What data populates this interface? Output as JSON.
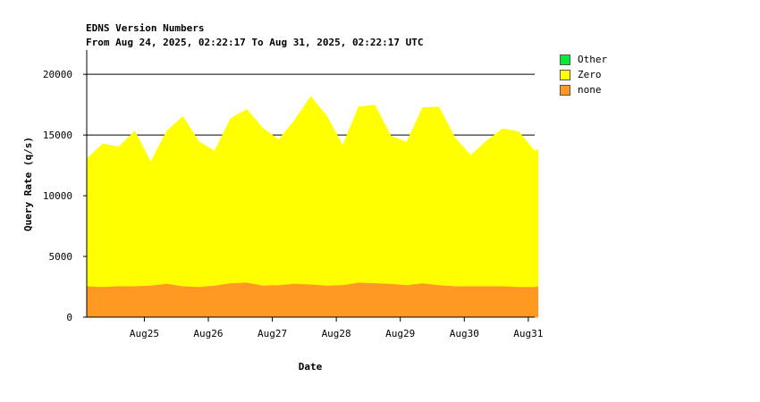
{
  "chart_data": {
    "type": "area",
    "title": "EDNS Version Numbers",
    "subtitle": "From Aug 24, 2025, 02:22:17 To Aug 31, 2025, 02:22:17 UTC",
    "xlabel": "Date",
    "ylabel": "Query Rate (q/s)",
    "ylim": [
      0,
      22000
    ],
    "y_ticks": [
      0,
      5000,
      10000,
      15000,
      20000
    ],
    "x_tick_labels": [
      "Aug25",
      "Aug26",
      "Aug27",
      "Aug28",
      "Aug29",
      "Aug30",
      "Aug31"
    ],
    "x_tick_days": [
      0.9,
      1.9,
      2.9,
      3.9,
      4.9,
      5.9,
      6.9
    ],
    "x_range_days": [
      0,
      7
    ],
    "grid": "horizontal",
    "legend_placement": "right",
    "stacked": true,
    "series": [
      {
        "name": "Other",
        "color": "#00ee33",
        "values": [
          0,
          0,
          0,
          0,
          0,
          0,
          0,
          0,
          0,
          0,
          0,
          0,
          0,
          0,
          0,
          0,
          0,
          0,
          0,
          0,
          0,
          0,
          0,
          0,
          0,
          0,
          0,
          0,
          0,
          0
        ]
      },
      {
        "name": "Zero",
        "color": "#ffff00",
        "x_days": [
          0,
          0.25,
          0.5,
          0.75,
          1,
          1.25,
          1.5,
          1.75,
          2,
          2.25,
          2.5,
          2.75,
          3,
          3.25,
          3.5,
          3.75,
          4,
          4.25,
          4.5,
          4.75,
          5,
          5.25,
          5.5,
          5.75,
          6,
          6.25,
          6.5,
          6.75,
          7,
          7.05
        ],
        "values": [
          10500,
          11800,
          11500,
          12800,
          10200,
          12600,
          14000,
          12000,
          11100,
          13600,
          14300,
          13000,
          12000,
          13500,
          15500,
          14000,
          11500,
          14500,
          14700,
          12200,
          11800,
          14500,
          14700,
          12300,
          10800,
          12000,
          13000,
          12800,
          11200,
          11300
        ]
      },
      {
        "name": "none",
        "color": "#ff9922",
        "x_days": [
          0,
          0.25,
          0.5,
          0.75,
          1,
          1.25,
          1.5,
          1.75,
          2,
          2.25,
          2.5,
          2.75,
          3,
          3.25,
          3.5,
          3.75,
          4,
          4.25,
          4.5,
          4.75,
          5,
          5.25,
          5.5,
          5.75,
          6,
          6.25,
          6.5,
          6.75,
          7,
          7.05
        ],
        "values": [
          2500,
          2450,
          2500,
          2500,
          2550,
          2700,
          2500,
          2450,
          2550,
          2750,
          2800,
          2550,
          2600,
          2700,
          2650,
          2550,
          2600,
          2800,
          2750,
          2700,
          2600,
          2750,
          2600,
          2500,
          2500,
          2500,
          2500,
          2450,
          2450,
          2500
        ]
      }
    ]
  }
}
